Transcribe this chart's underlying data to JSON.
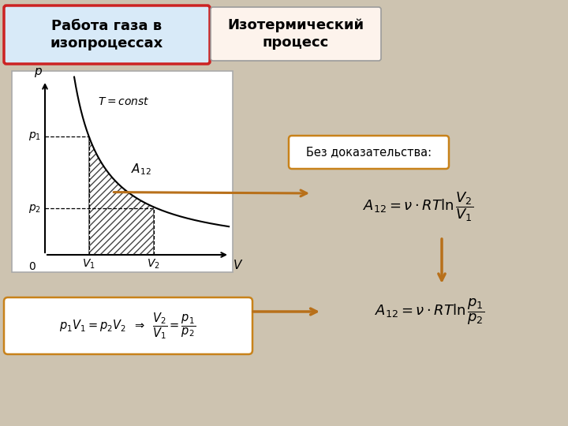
{
  "bg_color": "#cdc3b0",
  "title_left": "Работа газа в\nизопроцессах",
  "title_right": "Изотермический\nпроцесс",
  "title_left_bg": "#d8eaf8",
  "title_left_border": "#cc2222",
  "title_right_bg": "#fdf3ec",
  "title_right_border": "#9b9b9b",
  "graph_bg": "#ffffff",
  "hatch_color": "#444444",
  "arrow_color": "#b8701a",
  "bez_doc_text": "Без доказательства:",
  "bez_doc_bg": "#ffffff",
  "bez_doc_border": "#c8821a",
  "formula1_text": "$A_{12} = \\nu \\cdot RT \\ln \\dfrac{V_2}{V_1}$",
  "formula2_text": "$A_{12} = \\nu \\cdot RT \\ln \\dfrac{p_1}{p_2}$",
  "boyle_text": "$p_1 V_1 = p_2 V_2 \\;\\; \\Rightarrow \\;\\; \\dfrac{V_2}{V_1} = \\dfrac{p_1}{p_2}$",
  "boyle_bg": "#ffffff",
  "boyle_border": "#c8821a",
  "t_const_text": "$T = const$",
  "graph_label_p": "$p$",
  "graph_label_v": "$V$",
  "graph_label_p1": "$p_1$",
  "graph_label_p2": "$p_2$",
  "graph_label_v1": "$V_1$",
  "graph_label_v2": "$V_2$",
  "graph_label_a12": "$A_{12}$",
  "graph_label_0": "0",
  "V1_d": 0.25,
  "V2_d": 0.62,
  "P1_d": 0.72,
  "P2_d": 0.28
}
